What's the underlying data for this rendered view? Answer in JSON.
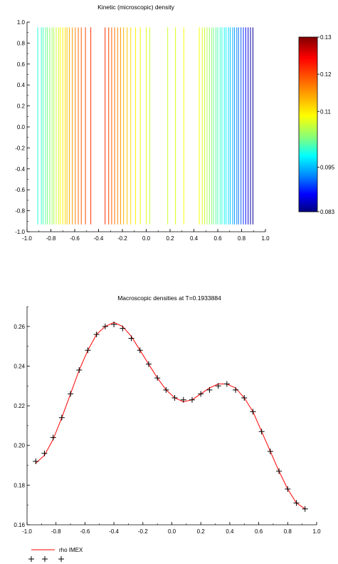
{
  "chart_data": [
    {
      "type": "contour",
      "title": "Kinetic (microscopic) density",
      "xlim": [
        -1.0,
        1.0
      ],
      "ylim": [
        -1.0,
        1.0
      ],
      "xticks": [
        "-1.0",
        "-0.8",
        "-0.6",
        "-0.4",
        "-0.2",
        "0.0",
        "0.2",
        "0.4",
        "0.6",
        "0.8",
        "1.0"
      ],
      "yticks": [
        "-1.0",
        "-0.8",
        "-0.6",
        "-0.4",
        "-0.2",
        "0.0",
        "0.2",
        "0.4",
        "0.6",
        "0.8",
        "1.0"
      ],
      "contour_lines": [
        {
          "x": -0.91,
          "value": 0.102
        },
        {
          "x": -0.88,
          "value": 0.103
        },
        {
          "x": -0.865,
          "value": 0.104
        },
        {
          "x": -0.845,
          "value": 0.105
        },
        {
          "x": -0.83,
          "value": 0.106
        },
        {
          "x": -0.81,
          "value": 0.107
        },
        {
          "x": -0.79,
          "value": 0.108
        },
        {
          "x": -0.775,
          "value": 0.109
        },
        {
          "x": -0.755,
          "value": 0.11
        },
        {
          "x": -0.735,
          "value": 0.111
        },
        {
          "x": -0.72,
          "value": 0.112
        },
        {
          "x": -0.7,
          "value": 0.113
        },
        {
          "x": -0.68,
          "value": 0.114
        },
        {
          "x": -0.665,
          "value": 0.115
        },
        {
          "x": -0.645,
          "value": 0.116
        },
        {
          "x": -0.62,
          "value": 0.117
        },
        {
          "x": -0.595,
          "value": 0.118
        },
        {
          "x": -0.57,
          "value": 0.119
        },
        {
          "x": -0.545,
          "value": 0.12
        },
        {
          "x": -0.51,
          "value": 0.121
        },
        {
          "x": -0.465,
          "value": 0.122
        },
        {
          "x": -0.345,
          "value": 0.122
        },
        {
          "x": -0.315,
          "value": 0.121
        },
        {
          "x": -0.29,
          "value": 0.12
        },
        {
          "x": -0.265,
          "value": 0.119
        },
        {
          "x": -0.24,
          "value": 0.118
        },
        {
          "x": -0.215,
          "value": 0.117
        },
        {
          "x": -0.19,
          "value": 0.116
        },
        {
          "x": -0.16,
          "value": 0.115
        },
        {
          "x": -0.13,
          "value": 0.114
        },
        {
          "x": -0.09,
          "value": 0.113
        },
        {
          "x": -0.05,
          "value": 0.112
        },
        {
          "x": 0.0,
          "value": 0.111
        },
        {
          "x": 0.03,
          "value": 0.11
        },
        {
          "x": 0.18,
          "value": 0.11
        },
        {
          "x": 0.245,
          "value": 0.111
        },
        {
          "x": 0.315,
          "value": 0.112
        },
        {
          "x": 0.445,
          "value": 0.112
        },
        {
          "x": 0.47,
          "value": 0.111
        },
        {
          "x": 0.49,
          "value": 0.11
        },
        {
          "x": 0.51,
          "value": 0.109
        },
        {
          "x": 0.53,
          "value": 0.108
        },
        {
          "x": 0.55,
          "value": 0.107
        },
        {
          "x": 0.565,
          "value": 0.106
        },
        {
          "x": 0.585,
          "value": 0.105
        },
        {
          "x": 0.6,
          "value": 0.104
        },
        {
          "x": 0.62,
          "value": 0.103
        },
        {
          "x": 0.635,
          "value": 0.102
        },
        {
          "x": 0.655,
          "value": 0.101
        },
        {
          "x": 0.67,
          "value": 0.1
        },
        {
          "x": 0.69,
          "value": 0.099
        },
        {
          "x": 0.705,
          "value": 0.098
        },
        {
          "x": 0.725,
          "value": 0.097
        },
        {
          "x": 0.74,
          "value": 0.096
        },
        {
          "x": 0.76,
          "value": 0.095
        },
        {
          "x": 0.775,
          "value": 0.094
        },
        {
          "x": 0.795,
          "value": 0.093
        },
        {
          "x": 0.815,
          "value": 0.091
        },
        {
          "x": 0.835,
          "value": 0.089
        },
        {
          "x": 0.855,
          "value": 0.087
        },
        {
          "x": 0.875,
          "value": 0.085
        },
        {
          "x": 0.895,
          "value": 0.084
        }
      ],
      "colorbar": {
        "min": 0.083,
        "max": 0.13,
        "tick_labels": [
          "0.13",
          "0.12",
          "0.11",
          "0.095",
          "0.083"
        ],
        "tick_values": [
          0.13,
          0.12,
          0.11,
          0.095,
          0.083
        ]
      }
    },
    {
      "type": "line",
      "title": "Macroscopic densities at T=0.1933884",
      "xlim": [
        -1.0,
        1.0
      ],
      "ylim": [
        0.16,
        0.27
      ],
      "xticks": [
        "-1.0",
        "-0.8",
        "-0.6",
        "-0.4",
        "-0.2",
        "0.0",
        "0.2",
        "0.4",
        "0.6",
        "0.8",
        "1.0"
      ],
      "yticks": [
        "0.16",
        "0.18",
        "0.20",
        "0.22",
        "0.24",
        "0.26"
      ],
      "ytick_values": [
        0.16,
        0.18,
        0.2,
        0.22,
        0.24,
        0.26
      ],
      "series": [
        {
          "name": "rho IMEX",
          "style": "line",
          "color": "#ff0000",
          "x": [
            -0.94,
            -0.88,
            -0.82,
            -0.76,
            -0.7,
            -0.64,
            -0.58,
            -0.52,
            -0.46,
            -0.4,
            -0.34,
            -0.28,
            -0.22,
            -0.16,
            -0.1,
            -0.04,
            0.02,
            0.08,
            0.14,
            0.2,
            0.26,
            0.32,
            0.38,
            0.44,
            0.5,
            0.56,
            0.62,
            0.68,
            0.74,
            0.8,
            0.86,
            0.92
          ],
          "y": [
            0.191,
            0.195,
            0.203,
            0.214,
            0.226,
            0.238,
            0.248,
            0.256,
            0.26,
            0.262,
            0.26,
            0.255,
            0.248,
            0.241,
            0.234,
            0.228,
            0.224,
            0.222,
            0.223,
            0.226,
            0.229,
            0.231,
            0.231,
            0.229,
            0.224,
            0.217,
            0.207,
            0.197,
            0.187,
            0.178,
            0.171,
            0.168
          ]
        },
        {
          "name": "",
          "style": "markers",
          "marker": "+",
          "color": "#000000",
          "x": [
            -0.94,
            -0.88,
            -0.82,
            -0.76,
            -0.7,
            -0.64,
            -0.58,
            -0.52,
            -0.46,
            -0.4,
            -0.34,
            -0.28,
            -0.22,
            -0.16,
            -0.1,
            -0.04,
            0.02,
            0.08,
            0.14,
            0.2,
            0.26,
            0.32,
            0.38,
            0.44,
            0.5,
            0.56,
            0.62,
            0.68,
            0.74,
            0.8,
            0.86,
            0.92
          ],
          "y": [
            0.192,
            0.196,
            0.204,
            0.214,
            0.226,
            0.238,
            0.248,
            0.256,
            0.26,
            0.261,
            0.259,
            0.254,
            0.248,
            0.241,
            0.234,
            0.228,
            0.224,
            0.223,
            0.223,
            0.226,
            0.228,
            0.23,
            0.231,
            0.228,
            0.224,
            0.217,
            0.207,
            0.197,
            0.187,
            0.178,
            0.171,
            0.168
          ]
        }
      ]
    }
  ],
  "colors": {
    "axis": "#000000",
    "line": "#ff0000",
    "marker": "#000000"
  }
}
